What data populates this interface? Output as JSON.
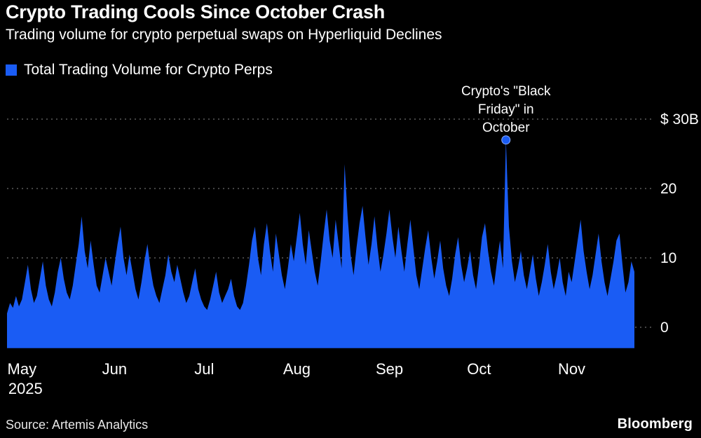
{
  "header": {
    "title": "Crypto Trading Cools Since October Crash",
    "subtitle": "Trading volume for crypto perpetual swaps on Hyperliquid Declines"
  },
  "legend": {
    "label": "Total Trading Volume for Crypto Perps"
  },
  "annotation": {
    "text": "Crypto's \"Black Friday\" in October",
    "lines": [
      "Crypto's \"Black",
      "Friday\" in",
      "October"
    ]
  },
  "footer": {
    "source": "Source: Artemis Analytics",
    "brand": "Bloomberg"
  },
  "colors": {
    "accent": "#1a5cf4",
    "grid": "#5c5c5c",
    "background": "#000000",
    "text": "#ffffff"
  },
  "chart_data": {
    "type": "area",
    "title": "Crypto Trading Cools Since October Crash",
    "subtitle": "Trading volume for crypto perpetual swaps on Hyperliquid Declines",
    "series_name": "Total Trading Volume for Crypto Perps",
    "unit": "$B",
    "ylim": [
      -3,
      32
    ],
    "grid": "dotted-horizontal",
    "legend_position": "top-left",
    "year_label": "2025",
    "yticks": [
      {
        "label": "$ 30B",
        "value": 30
      },
      {
        "label": "20",
        "value": 20
      },
      {
        "label": "10",
        "value": 10
      },
      {
        "label": "0",
        "value": 0
      }
    ],
    "xticks": [
      {
        "label": "May",
        "day_index": 5
      },
      {
        "label": "Jun",
        "day_index": 36
      },
      {
        "label": "Jul",
        "day_index": 66
      },
      {
        "label": "Aug",
        "day_index": 97
      },
      {
        "label": "Sep",
        "day_index": 128
      },
      {
        "label": "Oct",
        "day_index": 158
      },
      {
        "label": "Nov",
        "day_index": 189
      }
    ],
    "annotation_point": {
      "value": 27.0,
      "label": "Crypto's \"Black Friday\" in October"
    },
    "values": [
      2.0,
      3.5,
      2.8,
      4.5,
      3.0,
      4.0,
      6.5,
      9.0,
      5.5,
      3.5,
      4.5,
      7.0,
      9.5,
      6.0,
      4.0,
      3.0,
      5.0,
      8.0,
      10.0,
      7.0,
      5.0,
      4.0,
      6.0,
      9.0,
      12.0,
      16.0,
      11.0,
      8.5,
      12.5,
      9.0,
      6.0,
      5.0,
      7.5,
      10.0,
      8.0,
      6.0,
      9.0,
      12.0,
      14.5,
      10.0,
      7.5,
      10.5,
      8.0,
      5.5,
      4.0,
      6.5,
      9.5,
      12.0,
      8.5,
      6.0,
      4.5,
      3.5,
      5.5,
      7.5,
      10.5,
      8.0,
      6.5,
      9.0,
      7.0,
      5.0,
      3.5,
      4.5,
      6.5,
      8.5,
      5.5,
      4.0,
      3.0,
      2.5,
      4.0,
      6.0,
      8.0,
      5.0,
      3.5,
      4.5,
      5.5,
      7.0,
      4.5,
      3.0,
      2.5,
      3.5,
      6.0,
      9.0,
      12.5,
      14.5,
      10.0,
      7.5,
      12.0,
      15.0,
      11.0,
      8.0,
      13.5,
      10.5,
      7.5,
      5.5,
      8.5,
      12.0,
      9.5,
      13.0,
      16.5,
      12.0,
      9.0,
      14.0,
      11.0,
      8.0,
      6.0,
      9.5,
      13.5,
      17.0,
      12.5,
      10.0,
      15.5,
      12.0,
      8.5,
      23.5,
      16.0,
      10.5,
      7.5,
      11.5,
      15.0,
      17.5,
      13.0,
      9.0,
      12.0,
      16.0,
      11.5,
      8.0,
      10.5,
      13.5,
      17.0,
      13.0,
      10.0,
      14.5,
      11.0,
      8.0,
      12.0,
      15.5,
      11.5,
      7.5,
      5.5,
      8.5,
      11.5,
      14.0,
      10.0,
      7.0,
      9.5,
      12.5,
      8.5,
      6.0,
      4.5,
      7.0,
      10.5,
      13.0,
      9.0,
      6.5,
      8.5,
      11.0,
      7.5,
      5.5,
      9.0,
      13.0,
      15.0,
      11.0,
      8.0,
      6.0,
      9.5,
      12.5,
      8.5,
      27.0,
      14.5,
      9.5,
      6.5,
      8.5,
      11.0,
      7.5,
      5.5,
      8.0,
      10.5,
      7.0,
      4.5,
      6.5,
      9.0,
      12.0,
      8.0,
      5.5,
      7.5,
      10.0,
      6.5,
      4.5,
      8.0,
      6.5,
      9.5,
      12.5,
      15.5,
      11.0,
      8.0,
      5.5,
      7.5,
      10.5,
      13.5,
      9.5,
      6.5,
      4.5,
      7.0,
      9.5,
      12.5,
      13.5,
      9.0,
      5.0,
      6.5,
      9.5,
      8.0
    ]
  }
}
